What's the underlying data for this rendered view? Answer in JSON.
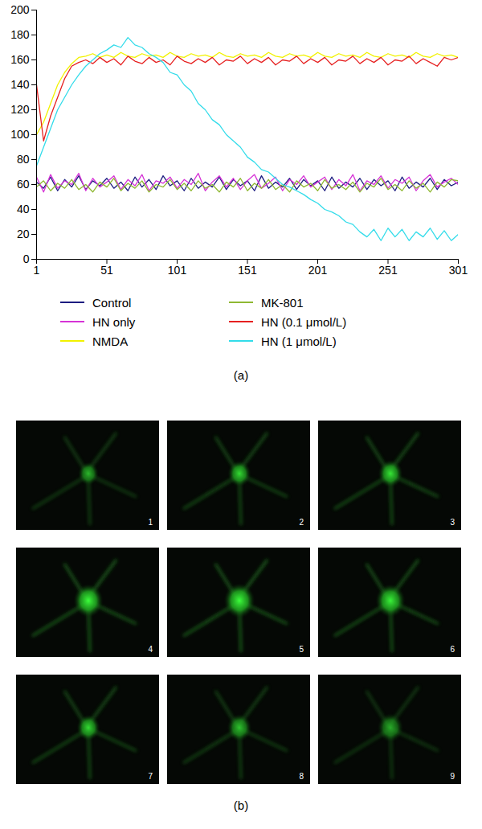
{
  "chart_data": {
    "type": "line",
    "x": [
      1,
      6,
      11,
      16,
      21,
      26,
      31,
      36,
      41,
      46,
      51,
      56,
      61,
      66,
      71,
      76,
      81,
      86,
      91,
      96,
      101,
      106,
      111,
      116,
      121,
      126,
      131,
      136,
      141,
      146,
      151,
      156,
      161,
      166,
      171,
      176,
      181,
      186,
      191,
      196,
      201,
      206,
      211,
      216,
      221,
      226,
      231,
      236,
      241,
      246,
      251,
      256,
      261,
      266,
      271,
      276,
      281,
      286,
      291,
      296,
      301
    ],
    "xlim": [
      1,
      301
    ],
    "xticks": [
      1,
      51,
      101,
      151,
      201,
      251,
      301
    ],
    "ylim": [
      0,
      200
    ],
    "yticks": [
      0,
      20,
      40,
      60,
      80,
      100,
      120,
      140,
      160,
      180,
      200
    ],
    "legend": "bottom",
    "series": [
      {
        "name": "Control",
        "color": "#1c1c80",
        "values": [
          62,
          57,
          66,
          55,
          64,
          58,
          67,
          56,
          63,
          59,
          65,
          57,
          62,
          55,
          66,
          58,
          64,
          56,
          67,
          59,
          63,
          55,
          65,
          57,
          62,
          58,
          66,
          56,
          64,
          59,
          63,
          55,
          67,
          57,
          62,
          58,
          65,
          56,
          64,
          59,
          63,
          55,
          66,
          57,
          62,
          58,
          65,
          56,
          64,
          59,
          63,
          55,
          66,
          57,
          62,
          58,
          65,
          56,
          64,
          59,
          62
        ]
      },
      {
        "name": "HN only",
        "color": "#d633d6",
        "values": [
          66,
          54,
          68,
          57,
          63,
          60,
          69,
          55,
          65,
          58,
          62,
          67,
          56,
          64,
          59,
          68,
          55,
          63,
          61,
          66,
          57,
          64,
          60,
          69,
          55,
          62,
          67,
          58,
          65,
          56,
          63,
          68,
          57,
          61,
          66,
          55,
          64,
          60,
          67,
          58,
          62,
          66,
          56,
          64,
          59,
          68,
          55,
          63,
          60,
          67,
          57,
          64,
          61,
          66,
          55,
          63,
          68,
          58,
          62,
          65,
          60
        ]
      },
      {
        "name": "NMDA",
        "color": "#f2f200",
        "values": [
          100,
          110,
          125,
          140,
          150,
          157,
          162,
          163,
          165,
          162,
          164,
          162,
          166,
          163,
          162,
          165,
          163,
          164,
          162,
          166,
          163,
          162,
          165,
          163,
          164,
          162,
          166,
          163,
          162,
          165,
          163,
          164,
          162,
          166,
          163,
          162,
          165,
          163,
          164,
          162,
          166,
          163,
          162,
          165,
          163,
          164,
          162,
          166,
          163,
          162,
          165,
          163,
          164,
          162,
          166,
          163,
          162,
          165,
          163,
          164,
          162
        ]
      },
      {
        "name": "MK-801",
        "color": "#8fb832",
        "values": [
          58,
          63,
          55,
          61,
          57,
          64,
          56,
          60,
          54,
          62,
          58,
          65,
          55,
          61,
          57,
          63,
          54,
          60,
          58,
          64,
          56,
          61,
          55,
          63,
          57,
          60,
          54,
          62,
          58,
          65,
          55,
          61,
          57,
          64,
          56,
          60,
          54,
          63,
          58,
          61,
          55,
          64,
          57,
          60,
          56,
          62,
          54,
          61,
          58,
          65,
          56,
          60,
          55,
          63,
          57,
          61,
          54,
          62,
          58,
          64,
          63
        ]
      },
      {
        "name": "HN (0.1 μmol/L)",
        "color": "#e62020",
        "values": [
          140,
          95,
          115,
          130,
          145,
          155,
          158,
          160,
          157,
          162,
          158,
          161,
          156,
          163,
          159,
          157,
          162,
          158,
          160,
          156,
          163,
          159,
          157,
          161,
          158,
          162,
          156,
          160,
          159,
          163,
          157,
          161,
          158,
          162,
          156,
          160,
          159,
          163,
          157,
          161,
          158,
          162,
          156,
          160,
          159,
          163,
          157,
          161,
          158,
          162,
          156,
          160,
          159,
          163,
          157,
          161,
          158,
          155,
          162,
          160,
          162
        ]
      },
      {
        "name": "HN (1 μmol/L)",
        "color": "#33dcea",
        "values": [
          75,
          90,
          105,
          120,
          130,
          140,
          148,
          155,
          160,
          165,
          168,
          172,
          170,
          178,
          172,
          170,
          165,
          162,
          158,
          150,
          148,
          140,
          135,
          125,
          120,
          112,
          108,
          100,
          95,
          90,
          82,
          78,
          72,
          70,
          65,
          60,
          58,
          55,
          52,
          48,
          45,
          40,
          38,
          35,
          30,
          28,
          22,
          18,
          24,
          15,
          25,
          18,
          24,
          15,
          22,
          18,
          25,
          16,
          23,
          15,
          20
        ]
      }
    ]
  },
  "panels": {
    "a": "(a)",
    "b": "(b)"
  },
  "images": [
    1,
    2,
    3,
    4,
    5,
    6,
    7,
    8,
    9
  ]
}
